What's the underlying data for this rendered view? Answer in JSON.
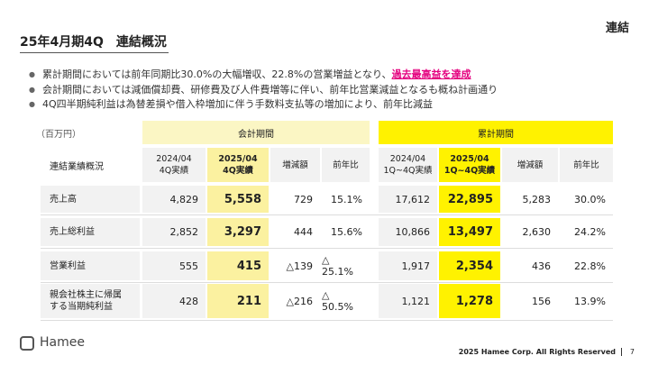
{
  "header": {
    "title": "25年4月期4Q　連結概況",
    "section": "連結"
  },
  "bullets": [
    {
      "text": "累計期間においては前年同期比30.0%の大幅増収、22.8%の営業増益となり、",
      "highlight": "過去最高益を達成"
    },
    {
      "text": "会計期間においては減価償却費、研修費及び人件費増等に伴い、前年比営業減益となるも概ね計画通り"
    },
    {
      "text": "4Q四半期純利益は為替差損や借入枠増加に伴う手数料支払等の増加により、前年比減益"
    }
  ],
  "table": {
    "unit": "（百万円）",
    "groups": [
      "会計期間",
      "累計期間"
    ],
    "row_header": "連結業績概況",
    "columns": [
      [
        "2024/04",
        "4Q実績"
      ],
      [
        "2025/04",
        "4Q実績"
      ],
      [
        "増減額"
      ],
      [
        "前年比"
      ],
      [
        "2024/04",
        "1Q~4Q実績"
      ],
      [
        "2025/04",
        "1Q~4Q実績"
      ],
      [
        "増減額"
      ],
      [
        "前年比"
      ]
    ],
    "rows": [
      {
        "label": [
          "売上高"
        ],
        "cells": [
          "4,829",
          "5,558",
          "729",
          "15.1%",
          "17,612",
          "22,895",
          "5,283",
          "30.0%"
        ]
      },
      {
        "label": [
          "売上総利益"
        ],
        "cells": [
          "2,852",
          "3,297",
          "444",
          "15.6%",
          "10,866",
          "13,497",
          "2,630",
          "24.2%"
        ]
      },
      {
        "label": [
          "営業利益"
        ],
        "cells": [
          "555",
          "415",
          "△139",
          "△ 25.1%",
          "1,917",
          "2,354",
          "436",
          "22.8%"
        ]
      },
      {
        "label": [
          "親会社株主に帰属",
          "する当期純利益"
        ],
        "cells": [
          "428",
          "211",
          "△216",
          "△ 50.5%",
          "1,121",
          "1,278",
          "156",
          "13.9%"
        ]
      }
    ]
  },
  "footer": {
    "logo": "Hamee",
    "copyright": "2025 Hamee Corp. All Rights Reserved",
    "page": "7"
  }
}
